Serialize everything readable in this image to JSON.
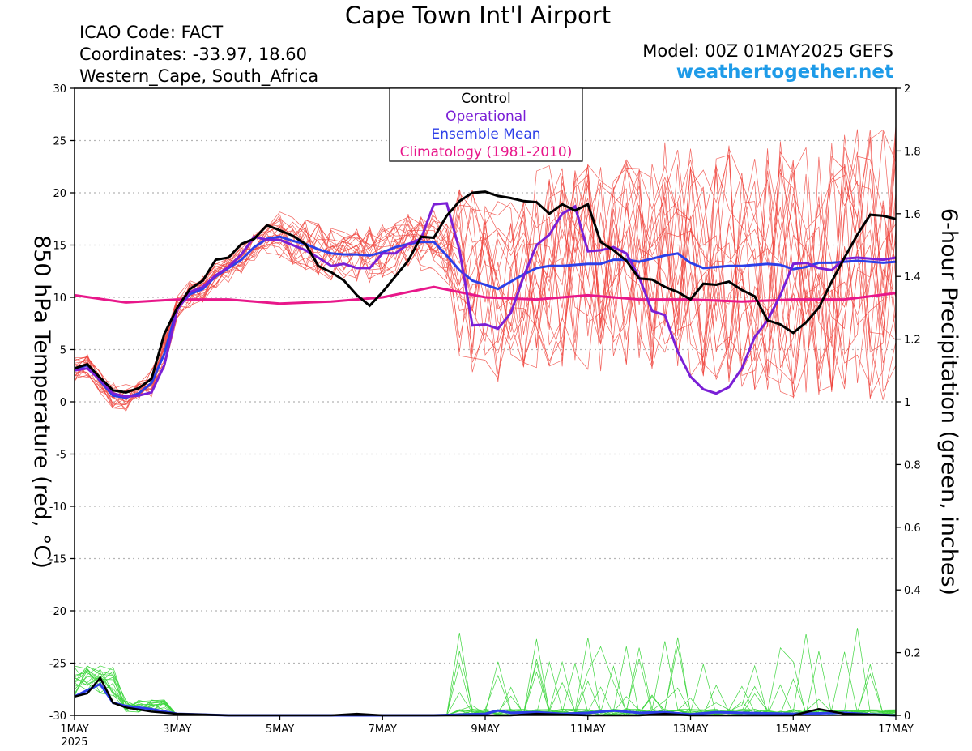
{
  "header": {
    "title": "Cape Town Int'l Airport",
    "icao": "ICAO Code: FACT",
    "coords": "Coordinates: -33.97, 18.60",
    "region": "Western_Cape, South_Africa",
    "model": "Model: 00Z 01MAY2025 GEFS",
    "brand": "weathertogether.net"
  },
  "colors": {
    "control": "#000000",
    "operational": "#7a1fd6",
    "mean": "#2d3fe8",
    "climatology": "#e8178a",
    "members_temp": "#f0473f",
    "members_precip": "#3fd63f",
    "brand": "#1e9be8",
    "grid": "#b5b5b5"
  },
  "chart_data": {
    "type": "line",
    "xlabel": "",
    "ylabel": "850 hPa Temperature (red, °C)",
    "y2label": "6-hour Precipitation (green, inches)",
    "xlim": [
      0,
      16
    ],
    "ylim": [
      -30,
      30
    ],
    "y2lim": [
      0,
      2
    ],
    "grid": "dotted horizontal",
    "x_ticks": [
      {
        "x": 0,
        "label": "1MAY",
        "sub": "2025"
      },
      {
        "x": 2,
        "label": "3MAY"
      },
      {
        "x": 4,
        "label": "5MAY"
      },
      {
        "x": 6,
        "label": "7MAY"
      },
      {
        "x": 8,
        "label": "9MAY"
      },
      {
        "x": 10,
        "label": "11MAY"
      },
      {
        "x": 12,
        "label": "13MAY"
      },
      {
        "x": 14,
        "label": "15MAY"
      },
      {
        "x": 16,
        "label": "17MAY"
      }
    ],
    "y_ticks": [
      30,
      25,
      20,
      15,
      10,
      5,
      0,
      -5,
      -10,
      -15,
      -20,
      -25,
      -30
    ],
    "y2_ticks": [
      "2",
      "1.8",
      "1.6",
      "1.4",
      "1.2",
      "1",
      "0.8",
      "0.6",
      "0.4",
      "0.2",
      "0"
    ],
    "legend": {
      "position": "top-center",
      "entries": [
        {
          "label": "Control",
          "color": "#000000"
        },
        {
          "label": "Operational",
          "color": "#7a1fd6"
        },
        {
          "label": "Ensemble Mean",
          "color": "#2d3fe8"
        },
        {
          "label": "Climatology (1981-2010)",
          "color": "#e8178a"
        }
      ]
    },
    "temp_series": {
      "control": {
        "x": [
          0,
          0.25,
          0.5,
          0.75,
          1,
          1.25,
          1.5,
          1.75,
          2,
          2.25,
          2.5,
          2.75,
          3,
          3.25,
          3.5,
          3.75,
          4,
          4.25,
          4.5,
          4.75,
          5,
          5.25,
          5.5,
          5.75,
          6,
          6.25,
          6.5,
          6.75,
          7,
          7.25,
          7.5,
          7.75,
          8,
          8.25,
          8.5,
          8.75,
          9,
          9.25,
          9.5,
          9.75,
          10,
          10.25,
          10.5,
          10.75,
          11,
          11.25,
          11.5,
          11.75,
          12,
          12.25,
          12.5,
          12.75,
          13,
          13.25,
          13.5,
          13.75,
          14,
          14.25,
          14.5,
          14.75,
          15,
          15.25,
          15.5,
          15.75,
          16
        ],
        "values": [
          3.2,
          3.6,
          2.3,
          1.1,
          0.9,
          1.3,
          2.2,
          6.5,
          9.0,
          10.8,
          11.6,
          13.6,
          13.8,
          15.1,
          15.6,
          16.9,
          16.4,
          15.9,
          15.1,
          13.0,
          12.4,
          11.6,
          10.2,
          9.2,
          10.5,
          12.0,
          13.5,
          15.8,
          15.7,
          17.8,
          19.2,
          20.0,
          20.1,
          19.7,
          19.5,
          19.2,
          19.1,
          18.0,
          18.9,
          18.3,
          18.9,
          15.3,
          14.5,
          13.5,
          11.8,
          11.7,
          11.0,
          10.5,
          9.8,
          11.3,
          11.2,
          11.5,
          10.7,
          10.1,
          7.8,
          7.4,
          6.6,
          7.6,
          9.0,
          11.5,
          13.8,
          16.0,
          17.9,
          17.8,
          17.5
        ]
      },
      "operational": {
        "x": [
          0,
          0.25,
          0.5,
          0.75,
          1,
          1.25,
          1.5,
          1.75,
          2,
          2.25,
          2.5,
          2.75,
          3,
          3.25,
          3.5,
          3.75,
          4,
          4.25,
          4.5,
          4.75,
          5,
          5.25,
          5.5,
          5.75,
          6,
          6.25,
          6.5,
          6.75,
          7,
          7.25,
          7.5,
          7.75,
          8,
          8.25,
          8.5,
          8.75,
          9,
          9.25,
          9.5,
          9.75,
          10,
          10.25,
          10.5,
          10.75,
          11,
          11.25,
          11.5,
          11.75,
          12,
          12.25,
          12.5,
          12.75,
          13,
          13.25,
          13.5,
          13.75,
          14,
          14.25,
          14.5,
          14.75,
          15,
          15.25,
          15.5,
          15.75,
          16
        ],
        "values": [
          3.0,
          3.2,
          2.1,
          0.8,
          0.5,
          0.6,
          0.9,
          3.5,
          8.8,
          10.5,
          11.0,
          12.1,
          12.9,
          14.1,
          15.8,
          15.5,
          15.5,
          15.0,
          14.5,
          13.8,
          13.0,
          13.2,
          12.8,
          12.8,
          14.2,
          14.2,
          15.1,
          15.6,
          18.9,
          19.0,
          14.5,
          7.3,
          7.4,
          7.0,
          8.5,
          12.0,
          15.0,
          16.0,
          18.0,
          18.7,
          14.4,
          14.5,
          14.8,
          14.2,
          11.9,
          8.7,
          8.3,
          4.8,
          2.4,
          1.2,
          0.8,
          1.4,
          3.2,
          6.2,
          7.8,
          10.2,
          13.2,
          13.3,
          12.8,
          12.6,
          13.7,
          13.8,
          13.7,
          13.6,
          13.8
        ]
      },
      "mean": {
        "x": [
          0,
          0.25,
          0.5,
          0.75,
          1,
          1.25,
          1.5,
          1.75,
          2,
          2.25,
          2.5,
          2.75,
          3,
          3.25,
          3.5,
          3.75,
          4,
          4.25,
          4.5,
          4.75,
          5,
          5.25,
          5.5,
          5.75,
          6,
          6.25,
          6.5,
          6.75,
          7,
          7.25,
          7.5,
          7.75,
          8,
          8.25,
          8.5,
          8.75,
          9,
          9.25,
          9.5,
          9.75,
          10,
          10.25,
          10.5,
          10.75,
          11,
          11.25,
          11.5,
          11.75,
          12,
          12.25,
          12.5,
          12.75,
          13,
          13.25,
          13.5,
          13.75,
          14,
          14.25,
          14.5,
          14.75,
          15,
          15.25,
          15.5,
          15.75,
          16
        ],
        "values": [
          3.1,
          3.5,
          2.0,
          0.6,
          0.4,
          0.8,
          1.8,
          4.6,
          9.0,
          10.3,
          10.8,
          12.0,
          12.8,
          13.6,
          14.8,
          15.6,
          15.8,
          15.4,
          15.1,
          14.6,
          14.2,
          14.1,
          14.1,
          14.0,
          14.3,
          14.8,
          15.1,
          15.3,
          15.3,
          14.0,
          12.6,
          11.6,
          11.2,
          10.8,
          11.5,
          12.2,
          12.8,
          13.0,
          13.0,
          13.1,
          13.2,
          13.2,
          13.6,
          13.6,
          13.4,
          13.7,
          14.0,
          14.2,
          13.3,
          12.8,
          12.9,
          13.0,
          13.0,
          13.1,
          13.2,
          13.1,
          12.7,
          12.9,
          13.3,
          13.3,
          13.4,
          13.5,
          13.4,
          13.3,
          13.4
        ]
      },
      "climatology": {
        "x": [
          0,
          1,
          2,
          3,
          4,
          5,
          6,
          7,
          8,
          9,
          10,
          11,
          12,
          13,
          14,
          15,
          16
        ],
        "values": [
          10.2,
          9.5,
          9.8,
          9.8,
          9.4,
          9.6,
          10.0,
          11.0,
          10.0,
          9.8,
          10.2,
          9.8,
          9.8,
          9.6,
          9.8,
          9.8,
          10.4
        ]
      }
    },
    "precip_series": {
      "control": {
        "x": [
          0,
          0.25,
          0.5,
          0.75,
          1,
          1.5,
          2,
          3,
          4,
          5,
          5.5,
          6,
          7,
          8,
          8.5,
          9,
          10,
          11,
          11.5,
          12,
          13,
          14,
          14.5,
          15,
          16
        ],
        "values": [
          0.06,
          0.07,
          0.12,
          0.04,
          0.025,
          0.012,
          0.005,
          0.0,
          0.0,
          0.0,
          0.005,
          0.0,
          0.0,
          0.0,
          0.0,
          0.005,
          0.0,
          0.0,
          0.005,
          0.0,
          0.0,
          0.0,
          0.02,
          0.005,
          0.0
        ]
      },
      "mean": {
        "x": [
          0,
          0.25,
          0.5,
          0.75,
          1,
          1.5,
          2,
          3,
          4,
          5,
          6,
          7,
          8,
          8.25,
          8.5,
          9,
          9.5,
          10,
          10.5,
          11,
          11.5,
          12,
          12.5,
          13,
          14,
          15,
          15.5,
          16
        ],
        "values": [
          0.06,
          0.08,
          0.1,
          0.04,
          0.03,
          0.02,
          0.005,
          0.0,
          0.0,
          0.0,
          0.0,
          0.0,
          0.005,
          0.015,
          0.008,
          0.01,
          0.005,
          0.008,
          0.015,
          0.008,
          0.01,
          0.003,
          0.01,
          0.008,
          0.005,
          0.008,
          0.003,
          0.0
        ]
      }
    }
  }
}
